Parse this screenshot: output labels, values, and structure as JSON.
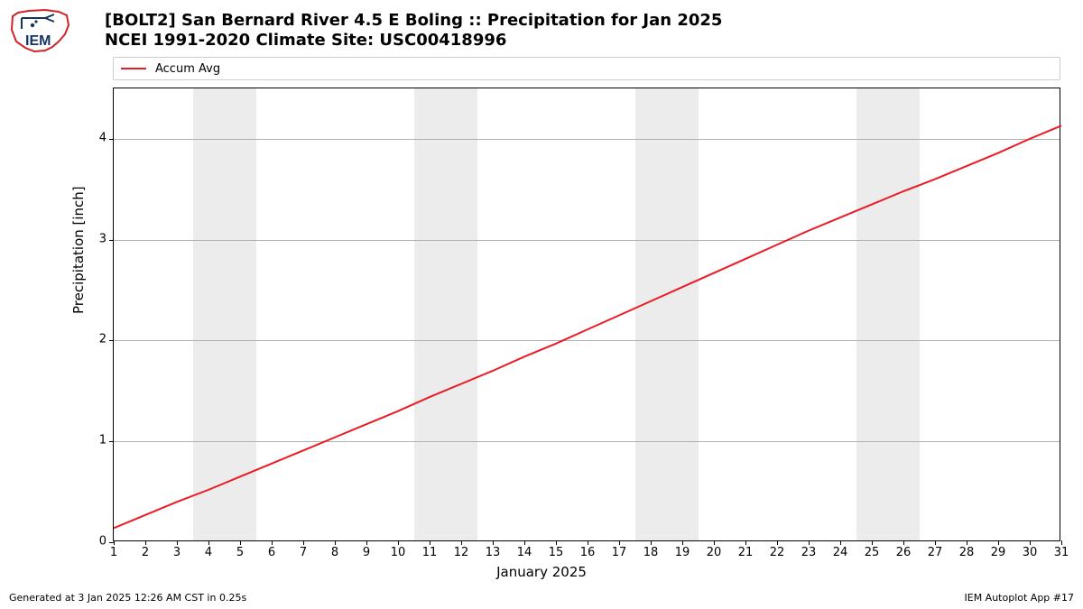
{
  "titles": {
    "line1": "[BOLT2] San Bernard River 4.5 E Boling :: Precipitation for Jan 2025",
    "line2": "NCEI 1991-2020 Climate Site: USC00418996"
  },
  "legend": {
    "label": "Accum Avg",
    "color": "#ec1b23"
  },
  "chart": {
    "type": "line",
    "background_color": "#ffffff",
    "grid_color": "#b0b0b0",
    "weekend_band_color": "#ececec",
    "series_color": "#ec1b23",
    "series_width": 2,
    "x": {
      "label": "January 2025",
      "min": 1,
      "max": 31,
      "ticks": [
        1,
        2,
        3,
        4,
        5,
        6,
        7,
        8,
        9,
        10,
        11,
        12,
        13,
        14,
        15,
        16,
        17,
        18,
        19,
        20,
        21,
        22,
        23,
        24,
        25,
        26,
        27,
        28,
        29,
        30,
        31
      ]
    },
    "y": {
      "label": "Precipitation [inch]",
      "min": 0,
      "max": 4.5,
      "ticks": [
        0,
        1,
        2,
        3,
        4
      ]
    },
    "weekend_bands": [
      {
        "start": 3.5,
        "end": 5.5
      },
      {
        "start": 10.5,
        "end": 12.5
      },
      {
        "start": 17.5,
        "end": 19.5
      },
      {
        "start": 24.5,
        "end": 26.5
      }
    ],
    "data": {
      "x": [
        1,
        2,
        3,
        4,
        5,
        6,
        7,
        8,
        9,
        10,
        11,
        12,
        13,
        14,
        15,
        16,
        17,
        18,
        19,
        20,
        21,
        22,
        23,
        24,
        25,
        26,
        27,
        28,
        29,
        30,
        31
      ],
      "y": [
        0.14,
        0.27,
        0.4,
        0.52,
        0.65,
        0.78,
        0.91,
        1.04,
        1.17,
        1.3,
        1.44,
        1.57,
        1.7,
        1.84,
        1.97,
        2.11,
        2.25,
        2.39,
        2.53,
        2.67,
        2.81,
        2.95,
        3.09,
        3.22,
        3.35,
        3.48,
        3.6,
        3.73,
        3.86,
        4.0,
        4.13
      ]
    }
  },
  "footer": {
    "left": "Generated at 3 Jan 2025 12:26 AM CST in 0.25s",
    "right": "IEM Autoplot App #17"
  },
  "logo": {
    "label": "IEM"
  }
}
